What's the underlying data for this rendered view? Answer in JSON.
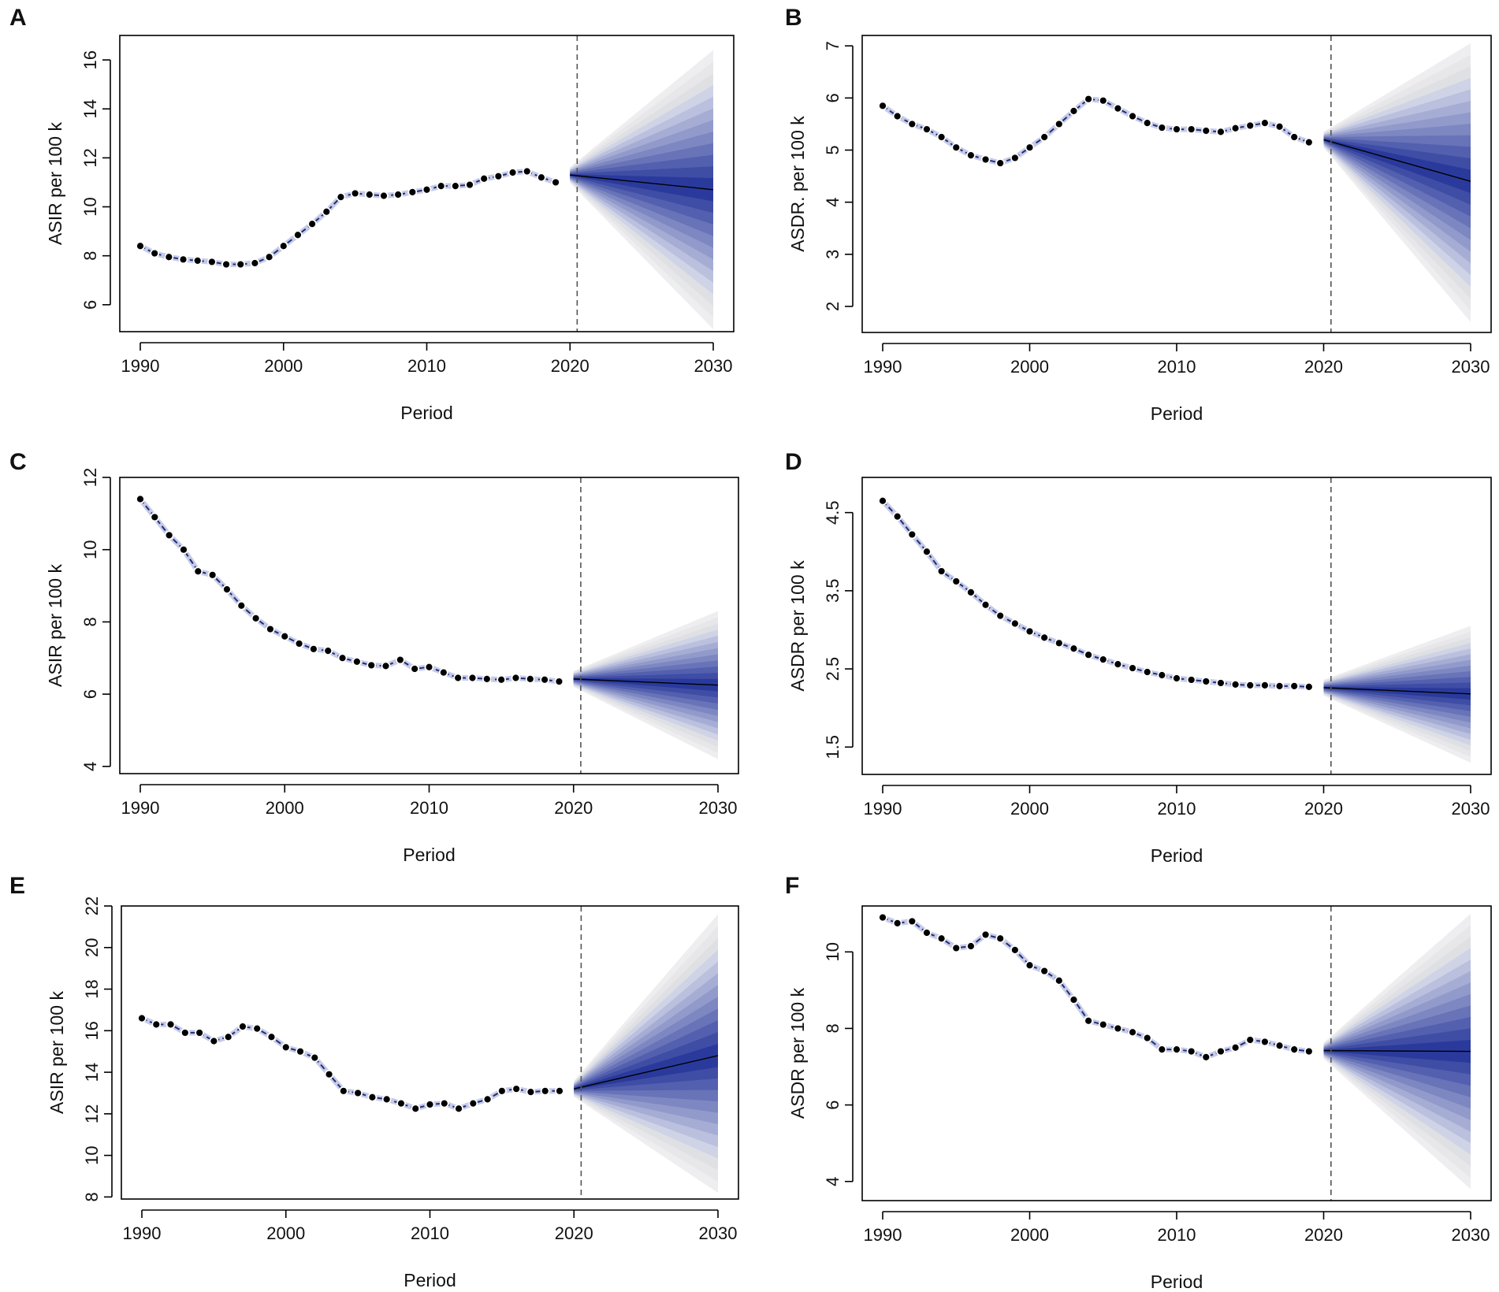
{
  "figure": {
    "forecast_divider_year": 2020.5
  },
  "colors": {
    "fan_outer": "#e6e6e9",
    "fan_inner": "#2a3a9c",
    "obs_line": "#1d2f7a",
    "divider": "#555555",
    "point": "#000000"
  },
  "chart_data": [
    {
      "panel": "A",
      "type": "line",
      "xlabel": "Period",
      "ylabel": "ASIR per 100 k",
      "xlim": [
        1990,
        2030
      ],
      "ylim": [
        4.9,
        17.0
      ],
      "xticks": [
        1990,
        2000,
        2010,
        2020,
        2030
      ],
      "xtick_labels": [
        "1990",
        "2000",
        "2010",
        "2020",
        "2030"
      ],
      "yticks": [
        6,
        8,
        10,
        12,
        14,
        16
      ],
      "ytick_labels": [
        "6",
        "8",
        "10",
        "12",
        "14",
        "16"
      ],
      "observed": {
        "x": [
          1990,
          1991,
          1992,
          1993,
          1994,
          1995,
          1996,
          1997,
          1998,
          1999,
          2000,
          2001,
          2002,
          2003,
          2004,
          2005,
          2006,
          2007,
          2008,
          2009,
          2010,
          2011,
          2012,
          2013,
          2014,
          2015,
          2016,
          2017,
          2018,
          2019
        ],
        "y": [
          8.4,
          8.1,
          7.95,
          7.85,
          7.8,
          7.75,
          7.65,
          7.65,
          7.7,
          7.95,
          8.4,
          8.85,
          9.3,
          9.8,
          10.4,
          10.55,
          10.5,
          10.45,
          10.5,
          10.6,
          10.7,
          10.85,
          10.85,
          10.9,
          11.15,
          11.25,
          11.4,
          11.45,
          11.2,
          11.0
        ]
      },
      "forecast": {
        "x": [
          2020,
          2030
        ],
        "mean": [
          11.3,
          10.7
        ],
        "lower_95": [
          11.3,
          5.0
        ],
        "upper_95": [
          11.3,
          16.4
        ]
      }
    },
    {
      "panel": "B",
      "type": "line",
      "xlabel": "Period",
      "ylabel": "ASDR. per 100 k",
      "xlim": [
        1990,
        2030
      ],
      "ylim": [
        1.5,
        7.2
      ],
      "xticks": [
        1990,
        2000,
        2010,
        2020,
        2030
      ],
      "xtick_labels": [
        "1990",
        "2000",
        "2010",
        "2020",
        "2030"
      ],
      "yticks": [
        2,
        3,
        4,
        5,
        6,
        7
      ],
      "ytick_labels": [
        "2",
        "3",
        "4",
        "5",
        "6",
        "7"
      ],
      "observed": {
        "x": [
          1990,
          1991,
          1992,
          1993,
          1994,
          1995,
          1996,
          1997,
          1998,
          1999,
          2000,
          2001,
          2002,
          2003,
          2004,
          2005,
          2006,
          2007,
          2008,
          2009,
          2010,
          2011,
          2012,
          2013,
          2014,
          2015,
          2016,
          2017,
          2018,
          2019
        ],
        "y": [
          5.85,
          5.65,
          5.5,
          5.4,
          5.25,
          5.05,
          4.9,
          4.82,
          4.75,
          4.85,
          5.05,
          5.25,
          5.5,
          5.75,
          5.98,
          5.95,
          5.8,
          5.65,
          5.52,
          5.43,
          5.4,
          5.4,
          5.37,
          5.35,
          5.42,
          5.47,
          5.52,
          5.45,
          5.25,
          5.15
        ]
      },
      "forecast": {
        "x": [
          2020,
          2030
        ],
        "mean": [
          5.2,
          4.4
        ],
        "lower_95": [
          5.2,
          1.7
        ],
        "upper_95": [
          5.2,
          7.05
        ]
      }
    },
    {
      "panel": "C",
      "type": "line",
      "xlabel": "Period",
      "ylabel": "ASIR per 100 k",
      "xlim": [
        1990,
        2030
      ],
      "ylim": [
        3.8,
        12.0
      ],
      "xticks": [
        1990,
        2000,
        2010,
        2020,
        2030
      ],
      "xtick_labels": [
        "1990",
        "2000",
        "2010",
        "2020",
        "2030"
      ],
      "yticks": [
        4,
        6,
        8,
        10,
        12
      ],
      "ytick_labels": [
        "4",
        "6",
        "8",
        "10",
        "12"
      ],
      "observed": {
        "x": [
          1990,
          1991,
          1992,
          1993,
          1994,
          1995,
          1996,
          1997,
          1998,
          1999,
          2000,
          2001,
          2002,
          2003,
          2004,
          2005,
          2006,
          2007,
          2008,
          2009,
          2010,
          2011,
          2012,
          2013,
          2014,
          2015,
          2016,
          2017,
          2018,
          2019
        ],
        "y": [
          11.4,
          10.9,
          10.4,
          10.0,
          9.4,
          9.3,
          8.9,
          8.45,
          8.1,
          7.8,
          7.6,
          7.4,
          7.25,
          7.2,
          7.0,
          6.9,
          6.8,
          6.78,
          6.95,
          6.7,
          6.75,
          6.6,
          6.45,
          6.45,
          6.42,
          6.4,
          6.45,
          6.42,
          6.4,
          6.35
        ]
      },
      "forecast": {
        "x": [
          2020,
          2030
        ],
        "mean": [
          6.42,
          6.25
        ],
        "lower_95": [
          6.42,
          4.2
        ],
        "upper_95": [
          6.42,
          8.3
        ]
      }
    },
    {
      "panel": "D",
      "type": "line",
      "xlabel": "Period",
      "ylabel": "ASDR per 100 k",
      "xlim": [
        1990,
        2030
      ],
      "ylim": [
        1.15,
        4.95
      ],
      "xticks": [
        1990,
        2000,
        2010,
        2020,
        2030
      ],
      "xtick_labels": [
        "1990",
        "2000",
        "2010",
        "2020",
        "2030"
      ],
      "yticks": [
        1.5,
        2.5,
        3.5,
        4.5
      ],
      "ytick_labels": [
        "1.5",
        "2.5",
        "3.5",
        "4.5"
      ],
      "observed": {
        "x": [
          1990,
          1991,
          1992,
          1993,
          1994,
          1995,
          1996,
          1997,
          1998,
          1999,
          2000,
          2001,
          2002,
          2003,
          2004,
          2005,
          2006,
          2007,
          2008,
          2009,
          2010,
          2011,
          2012,
          2013,
          2014,
          2015,
          2016,
          2017,
          2018,
          2019
        ],
        "y": [
          4.65,
          4.45,
          4.22,
          4.0,
          3.75,
          3.62,
          3.48,
          3.32,
          3.18,
          3.08,
          2.98,
          2.9,
          2.83,
          2.76,
          2.68,
          2.62,
          2.56,
          2.51,
          2.46,
          2.42,
          2.38,
          2.36,
          2.34,
          2.32,
          2.3,
          2.29,
          2.29,
          2.28,
          2.28,
          2.27
        ]
      },
      "forecast": {
        "x": [
          2020,
          2030
        ],
        "mean": [
          2.26,
          2.18
        ],
        "lower_95": [
          2.26,
          1.3
        ],
        "upper_95": [
          2.26,
          3.05
        ]
      }
    },
    {
      "panel": "E",
      "type": "line",
      "xlabel": "Period",
      "ylabel": "ASIR per 100 k",
      "xlim": [
        1990,
        2030
      ],
      "ylim": [
        7.9,
        22.0
      ],
      "xticks": [
        1990,
        2000,
        2010,
        2020,
        2030
      ],
      "xtick_labels": [
        "1990",
        "2000",
        "2010",
        "2020",
        "2030"
      ],
      "yticks": [
        8,
        10,
        12,
        14,
        16,
        18,
        20,
        22
      ],
      "ytick_labels": [
        "8",
        "10",
        "12",
        "14",
        "16",
        "18",
        "20",
        "22"
      ],
      "observed": {
        "x": [
          1990,
          1991,
          1992,
          1993,
          1994,
          1995,
          1996,
          1997,
          1998,
          1999,
          2000,
          2001,
          2002,
          2003,
          2004,
          2005,
          2006,
          2007,
          2008,
          2009,
          2010,
          2011,
          2012,
          2013,
          2014,
          2015,
          2016,
          2017,
          2018,
          2019
        ],
        "y": [
          16.6,
          16.3,
          16.3,
          15.9,
          15.9,
          15.5,
          15.7,
          16.2,
          16.1,
          15.7,
          15.2,
          15.0,
          14.7,
          13.9,
          13.1,
          13.0,
          12.8,
          12.7,
          12.5,
          12.25,
          12.45,
          12.5,
          12.25,
          12.5,
          12.7,
          13.1,
          13.2,
          13.05,
          13.1,
          13.1
        ]
      },
      "forecast": {
        "x": [
          2020,
          2030
        ],
        "mean": [
          13.2,
          14.8
        ],
        "lower_95": [
          13.2,
          8.2
        ],
        "upper_95": [
          13.2,
          21.6
        ]
      }
    },
    {
      "panel": "F",
      "type": "line",
      "xlabel": "Period",
      "ylabel": "ASDR per 100 k",
      "xlim": [
        1990,
        2030
      ],
      "ylim": [
        3.5,
        11.2
      ],
      "xticks": [
        1990,
        2000,
        2010,
        2020,
        2030
      ],
      "xtick_labels": [
        "1990",
        "2000",
        "2010",
        "2020",
        "2030"
      ],
      "yticks": [
        4,
        6,
        8,
        10
      ],
      "ytick_labels": [
        "4",
        "6",
        "8",
        "10"
      ],
      "observed": {
        "x": [
          1990,
          1991,
          1992,
          1993,
          1994,
          1995,
          1996,
          1997,
          1998,
          1999,
          2000,
          2001,
          2002,
          2003,
          2004,
          2005,
          2006,
          2007,
          2008,
          2009,
          2010,
          2011,
          2012,
          2013,
          2014,
          2015,
          2016,
          2017,
          2018,
          2019
        ],
        "y": [
          10.9,
          10.75,
          10.8,
          10.5,
          10.35,
          10.1,
          10.15,
          10.45,
          10.35,
          10.05,
          9.65,
          9.5,
          9.25,
          8.75,
          8.2,
          8.1,
          8.0,
          7.9,
          7.75,
          7.45,
          7.45,
          7.4,
          7.25,
          7.4,
          7.5,
          7.7,
          7.65,
          7.55,
          7.45,
          7.4
        ]
      },
      "forecast": {
        "x": [
          2020,
          2030
        ],
        "mean": [
          7.42,
          7.4
        ],
        "lower_95": [
          7.42,
          3.8
        ],
        "upper_95": [
          7.42,
          11.0
        ]
      }
    }
  ]
}
